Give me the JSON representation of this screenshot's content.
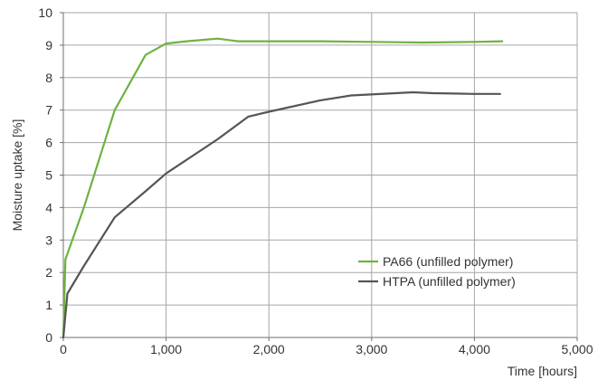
{
  "chart_data": {
    "type": "line",
    "xlabel": "Time [hours]",
    "ylabel": "Moisture uptake [%]",
    "xlim": [
      0,
      5000
    ],
    "ylim": [
      0,
      10
    ],
    "x_ticks": [
      0,
      1000,
      2000,
      3000,
      4000,
      5000
    ],
    "x_tick_labels": [
      "0",
      "1,000",
      "2,000",
      "3,000",
      "4,000",
      "5,000"
    ],
    "y_ticks": [
      0,
      1,
      2,
      3,
      4,
      5,
      6,
      7,
      8,
      9,
      10
    ],
    "y_tick_labels": [
      "0",
      "1",
      "2",
      "3",
      "4",
      "5",
      "6",
      "7",
      "8",
      "9",
      "10"
    ],
    "grid": true,
    "legend_position": "bottom-right",
    "series": [
      {
        "name": "PA66 (unfilled polymer)",
        "color": "#6db33f",
        "points": [
          [
            0,
            0
          ],
          [
            20,
            2.4
          ],
          [
            200,
            4.0
          ],
          [
            500,
            7.0
          ],
          [
            800,
            8.7
          ],
          [
            1000,
            9.05
          ],
          [
            1200,
            9.12
          ],
          [
            1500,
            9.2
          ],
          [
            1700,
            9.12
          ],
          [
            2000,
            9.12
          ],
          [
            2500,
            9.12
          ],
          [
            3000,
            9.1
          ],
          [
            3500,
            9.08
          ],
          [
            4000,
            9.1
          ],
          [
            4270,
            9.12
          ]
        ]
      },
      {
        "name": "HTPA (unfilled polymer)",
        "color": "#555555",
        "points": [
          [
            0,
            0
          ],
          [
            40,
            1.35
          ],
          [
            200,
            2.2
          ],
          [
            500,
            3.7
          ],
          [
            800,
            4.5
          ],
          [
            1000,
            5.05
          ],
          [
            1500,
            6.1
          ],
          [
            1800,
            6.8
          ],
          [
            2000,
            6.95
          ],
          [
            2500,
            7.3
          ],
          [
            2800,
            7.45
          ],
          [
            3400,
            7.55
          ],
          [
            3600,
            7.52
          ],
          [
            4000,
            7.5
          ],
          [
            4250,
            7.5
          ]
        ]
      }
    ]
  }
}
